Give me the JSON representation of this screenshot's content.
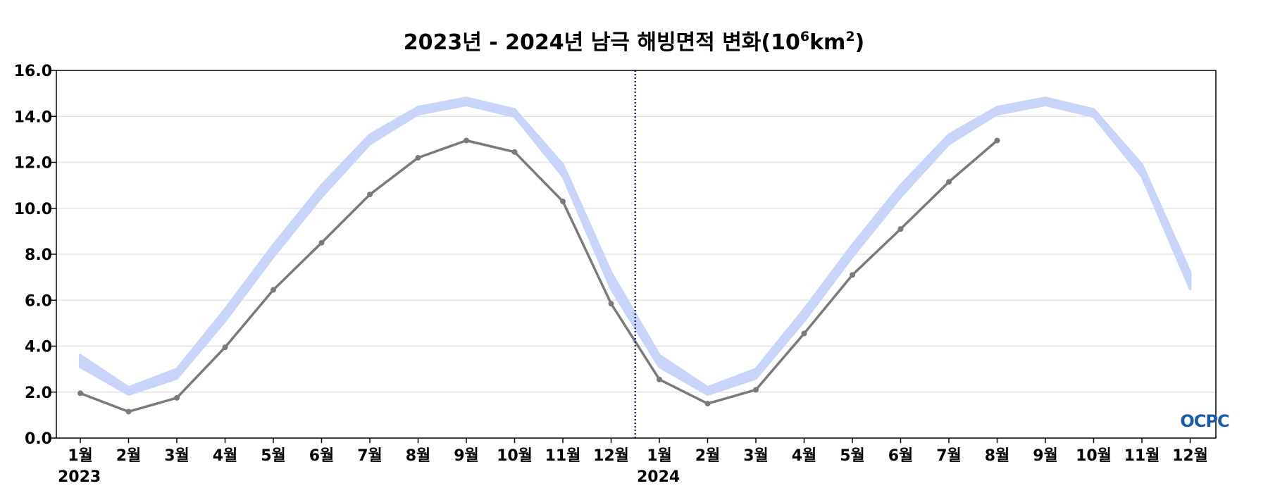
{
  "chart_data": {
    "type": "line",
    "title": "2023년 - 2024년 남극 해빙면적 변화(10",
    "title_exp1": "6",
    "title_mid": "km",
    "title_exp2": "2",
    "title_end": ")",
    "ylim": [
      0,
      16
    ],
    "yticks": [
      "0.0",
      "2.0",
      "4.0",
      "6.0",
      "8.0",
      "10.0",
      "12.0",
      "14.0",
      "16.0"
    ],
    "ytick_values": [
      0,
      2,
      4,
      6,
      8,
      10,
      12,
      14,
      16
    ],
    "x": [
      "2023-01",
      "2023-02",
      "2023-03",
      "2023-04",
      "2023-05",
      "2023-06",
      "2023-07",
      "2023-08",
      "2023-09",
      "2023-10",
      "2023-11",
      "2023-12",
      "2024-01",
      "2024-02",
      "2024-03",
      "2024-04",
      "2024-05",
      "2024-06",
      "2024-07",
      "2024-08",
      "2024-09",
      "2024-10",
      "2024-11",
      "2024-12"
    ],
    "xtick_labels": [
      "1월",
      "2월",
      "3월",
      "4월",
      "5월",
      "6월",
      "7월",
      "8월",
      "9월",
      "10월",
      "11월",
      "12월",
      "1월",
      "2월",
      "3월",
      "4월",
      "5월",
      "6월",
      "7월",
      "8월",
      "9월",
      "10월",
      "11월",
      "12월"
    ],
    "year_labels": [
      "2023",
      "2024"
    ],
    "series": [
      {
        "kind": "band",
        "color": "#c9d4fb",
        "lower": [
          3.1,
          1.9,
          2.6,
          5.1,
          7.9,
          10.5,
          12.8,
          14.1,
          14.5,
          14.0,
          11.4,
          6.5,
          3.1,
          1.9,
          2.6,
          5.1,
          7.9,
          10.5,
          12.8,
          14.1,
          14.5,
          14.0,
          11.4,
          6.5
        ],
        "upper": [
          3.6,
          2.2,
          3.0,
          5.6,
          8.4,
          11.0,
          13.2,
          14.4,
          14.8,
          14.3,
          11.9,
          7.2,
          3.6,
          2.2,
          3.0,
          5.6,
          8.4,
          11.0,
          13.2,
          14.4,
          14.8,
          14.3,
          11.9,
          7.2
        ]
      },
      {
        "kind": "line",
        "color": "#7a7a7a",
        "values": [
          1.95,
          1.15,
          1.75,
          3.95,
          6.45,
          8.5,
          10.6,
          12.2,
          12.95,
          12.45,
          10.3,
          5.85,
          2.55,
          1.5,
          2.1,
          4.55,
          7.1,
          9.1,
          11.15,
          12.95,
          null,
          null,
          null,
          null
        ]
      }
    ],
    "divider_after_index": 11,
    "divider_color": "#1b2a7a",
    "grid": true,
    "legend": "none"
  },
  "logo": {
    "text": "OCPC",
    "color": "#1a5aa8"
  }
}
